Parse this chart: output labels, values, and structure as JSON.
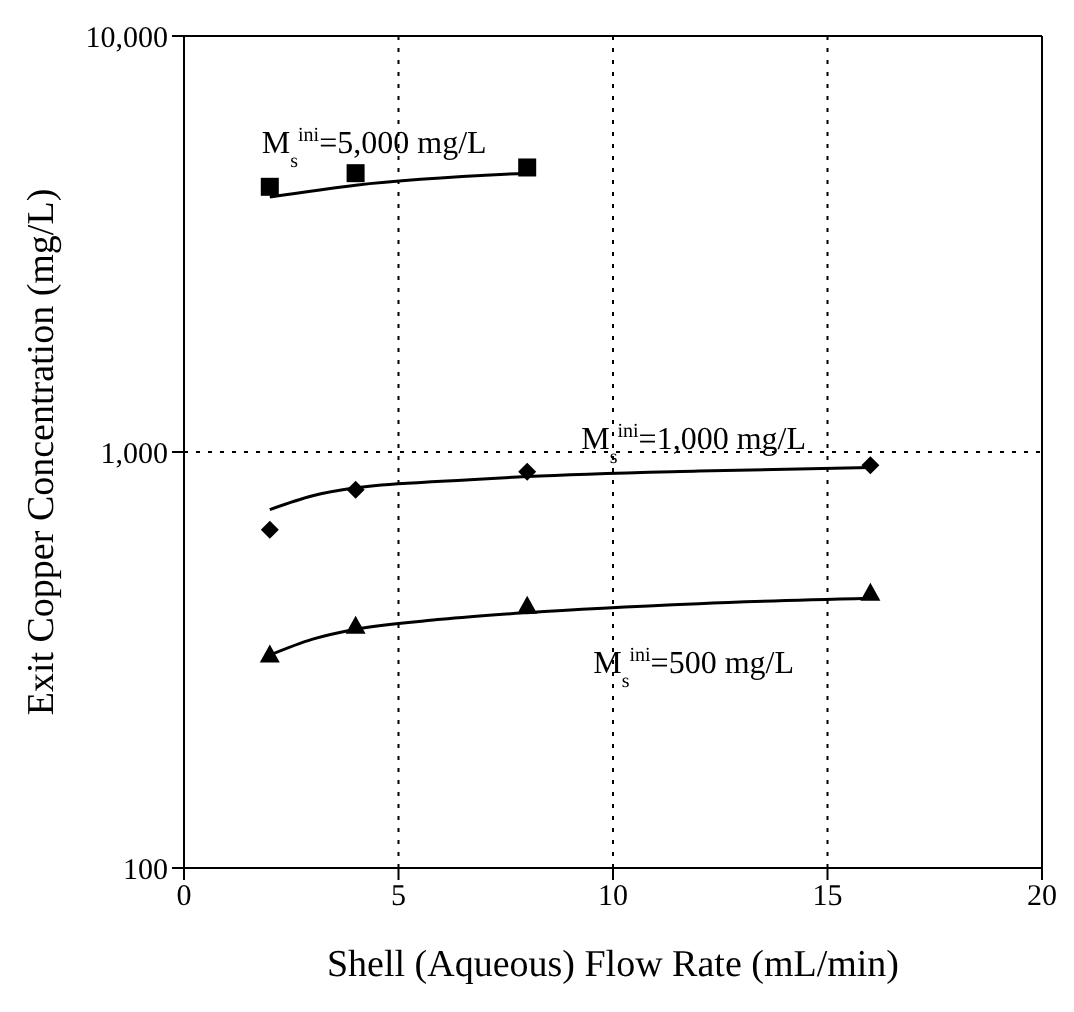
{
  "chart_data": {
    "type": "scatter",
    "xlabel": "Shell (Aqueous) Flow Rate (mL/min)",
    "ylabel": "Exit Copper Concentration (mg/L)",
    "log": "y",
    "grid": true,
    "xlim": [
      0,
      20
    ],
    "xticks": [
      0,
      5,
      10,
      15,
      20
    ],
    "ylim": [
      100,
      10000
    ],
    "yticks": [
      {
        "value": 100,
        "label": "100"
      },
      {
        "value": 1000,
        "label": "1,000"
      },
      {
        "value": 10000,
        "label": "10,000"
      }
    ],
    "series": [
      {
        "marker": "square",
        "color": "#000000",
        "x": [
          2,
          4,
          8
        ],
        "values": [
          4340,
          4680,
          4830
        ]
      },
      {
        "marker": "diamond",
        "color": "#000000",
        "x": [
          2,
          4,
          8,
          16
        ],
        "values": [
          650,
          811,
          896,
          929
        ]
      },
      {
        "marker": "triangle",
        "color": "#000000",
        "x": [
          2,
          4,
          8,
          16
        ],
        "values": [
          326,
          382,
          427,
          459
        ]
      },
      {
        "type": "line",
        "name": "M$_{s}$$^{ini}$=5,000 mg/L",
        "marker": "none",
        "color": "#000000",
        "x": [
          2,
          4,
          8
        ],
        "values": [
          4100,
          4380,
          4680
        ]
      },
      {
        "type": "line",
        "name": "M$_{s}$$^{ini}$=1,000 mg/L",
        "marker": "none",
        "color": "#000000",
        "x": [
          2,
          3,
          4,
          6,
          8,
          12,
          16
        ],
        "values": [
          727,
          785,
          820,
          850,
          873,
          900,
          918
        ]
      },
      {
        "type": "line",
        "name": "M$_{s}$$^{ini}$=500 mg/L",
        "marker": "none",
        "color": "#000000",
        "x": [
          2,
          3,
          4,
          6,
          8,
          12,
          16
        ],
        "values": [
          325,
          355,
          375,
          396,
          411,
          432,
          445
        ]
      }
    ]
  }
}
